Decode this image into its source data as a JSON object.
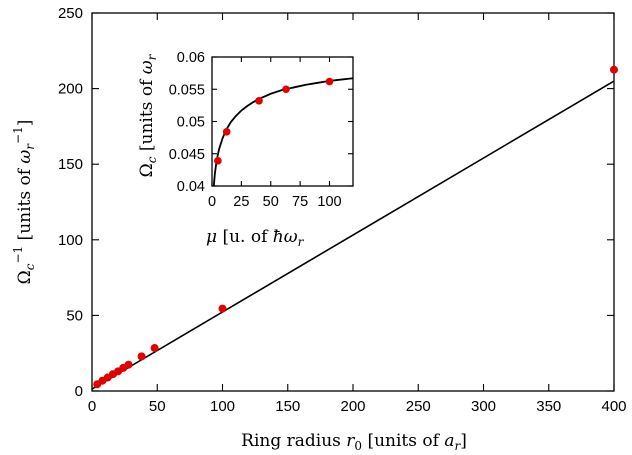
{
  "chart_data": [
    {
      "type": "scatter",
      "xlabel": "Ring radius r_0 [units of a_r]",
      "ylabel": "Ω_c^{-1} [units of ω_r^{-1}]",
      "xlim": [
        0,
        400
      ],
      "ylim": [
        0,
        250
      ],
      "x_ticks": [
        "0",
        "50",
        "100",
        "150",
        "200",
        "250",
        "300",
        "350",
        "400"
      ],
      "y_ticks": [
        "0",
        "50",
        "100",
        "150",
        "200",
        "250"
      ],
      "grid": false,
      "series": [
        {
          "kind": "points",
          "color": "#e00000",
          "x": [
            4,
            8,
            12,
            16,
            20,
            24,
            28,
            38,
            48,
            100,
            400
          ],
          "y": [
            4.5,
            6.8,
            8.9,
            11.1,
            13.0,
            15.3,
            17.4,
            22.9,
            28.4,
            54.5,
            212.5
          ]
        },
        {
          "kind": "fit-line",
          "color": "#000000",
          "x": [
            0,
            400
          ],
          "y": [
            1.3,
            205
          ]
        }
      ]
    },
    {
      "type": "scatter",
      "inset": true,
      "xlabel": "μ [u. of ħω_r",
      "ylabel": "Ω_c [units of ω_r",
      "xlim": [
        0,
        120
      ],
      "ylim": [
        0.04,
        0.06
      ],
      "x_ticks": [
        "0",
        "25",
        "50",
        "75",
        "100"
      ],
      "y_ticks": [
        "0.04",
        "0.045",
        "0.05",
        "0.055",
        "0.06"
      ],
      "grid": false,
      "series": [
        {
          "kind": "points",
          "color": "#e00000",
          "x": [
            5,
            12.5,
            40,
            63,
            100
          ],
          "y": [
            0.0439,
            0.0484,
            0.0532,
            0.055,
            0.0562
          ]
        },
        {
          "kind": "curve",
          "color": "#000000",
          "x": [
            1.5,
            2.5,
            4,
            6,
            9,
            12,
            16,
            20,
            25,
            30,
            35,
            40,
            50,
            60,
            70,
            80,
            90,
            100,
            110,
            120
          ],
          "y": [
            0.04,
            0.042,
            0.044,
            0.0457,
            0.0474,
            0.0487,
            0.0499,
            0.0508,
            0.0517,
            0.0524,
            0.053,
            0.0535,
            0.0543,
            0.0549,
            0.0553,
            0.0557,
            0.056,
            0.0563,
            0.0565,
            0.0567
          ]
        }
      ]
    }
  ]
}
